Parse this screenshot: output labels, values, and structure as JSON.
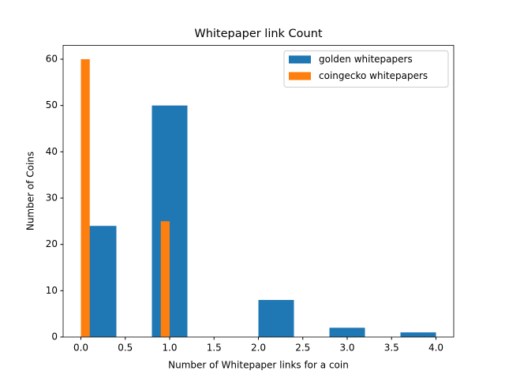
{
  "chart_data": {
    "type": "histogram",
    "title": "Whitepaper link Count",
    "x_label": "Number of Whitepaper links for a coin",
    "y_label": "Number of Coins",
    "xlim": [
      -0.2,
      4.2
    ],
    "ylim": [
      0,
      63
    ],
    "xticks": [
      {
        "value": 0,
        "label": "0.0"
      },
      {
        "value": 0.5,
        "label": "0.5"
      },
      {
        "value": 1,
        "label": "1.0"
      },
      {
        "value": 1.5,
        "label": "1.5"
      },
      {
        "value": 2,
        "label": "2.0"
      },
      {
        "value": 2.5,
        "label": "2.5"
      },
      {
        "value": 3,
        "label": "3.0"
      },
      {
        "value": 3.5,
        "label": "3.5"
      },
      {
        "value": 4,
        "label": "4.0"
      }
    ],
    "yticks": [
      0,
      10,
      20,
      30,
      40,
      50,
      60
    ],
    "legend": "upper right",
    "grid": false,
    "series": [
      {
        "name": "golden whitepapers",
        "color": "#1f77b4",
        "bins": [
          0,
          0.4,
          0.8,
          1.2,
          1.6,
          2.0,
          2.4,
          2.8,
          3.2,
          3.6,
          4.0
        ],
        "values": [
          24,
          0,
          50,
          0,
          0,
          8,
          0,
          2,
          0,
          1
        ]
      },
      {
        "name": "coingecko whitepapers",
        "color": "#ff7f0e",
        "bins": [
          0,
          0.1,
          0.2,
          0.3,
          0.4,
          0.5,
          0.6,
          0.7,
          0.8,
          0.9,
          1.0
        ],
        "values": [
          60,
          0,
          0,
          0,
          0,
          0,
          0,
          0,
          0,
          25
        ]
      }
    ]
  }
}
